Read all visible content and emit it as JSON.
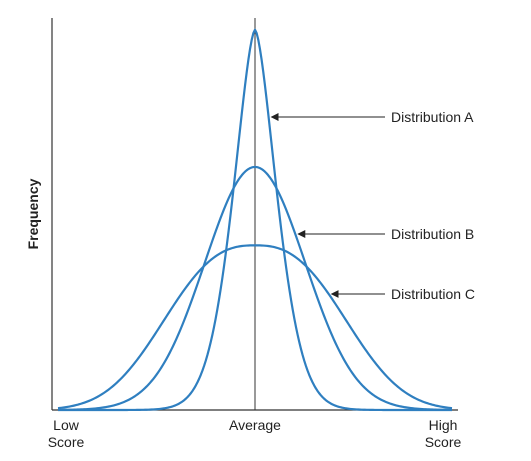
{
  "chart_data": {
    "type": "line",
    "ylabel": "Frequency",
    "xlabel": "",
    "x_ticks": [
      {
        "line1": "Low",
        "line2": "Score"
      },
      {
        "line1": "Average",
        "line2": ""
      },
      {
        "line1": "High",
        "line2": "Score"
      }
    ],
    "x_range": [
      -1,
      1
    ],
    "y_range": [
      0,
      1
    ],
    "grid": false,
    "vertical_reference": "Average",
    "series": [
      {
        "name": "Distribution A",
        "peak": 0.97,
        "spread": 0.16,
        "shape_power": 1.6,
        "color": "#2f7fc0"
      },
      {
        "name": "Distribution B",
        "peak": 0.62,
        "spread": 0.36,
        "shape_power": 2.0,
        "color": "#2f7fc0"
      },
      {
        "name": "Distribution C",
        "peak": 0.42,
        "spread": 0.56,
        "shape_power": 2.6,
        "color": "#2f7fc0"
      }
    ]
  }
}
